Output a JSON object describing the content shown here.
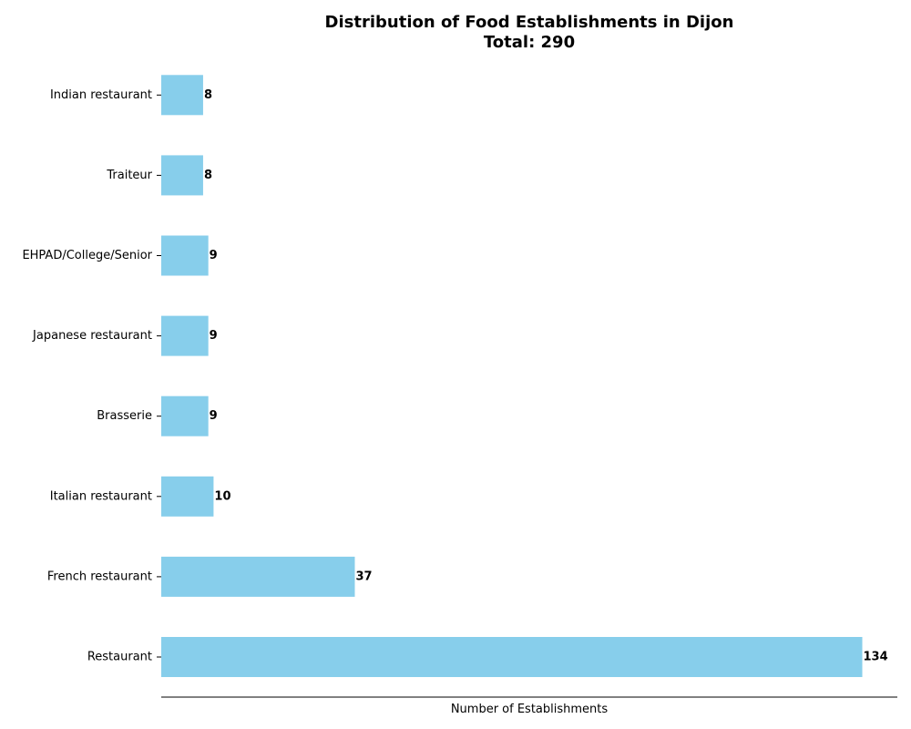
{
  "chart_data": {
    "type": "bar",
    "orientation": "horizontal",
    "title_lines": [
      "Distribution of Food Establishments in Dijon",
      "Total: 290"
    ],
    "xlabel": "Number of Establishments",
    "ylabel": "",
    "categories": [
      "Restaurant",
      "French restaurant",
      "Italian restaurant",
      "Brasserie",
      "Japanese restaurant",
      "EHPAD/College/Senior",
      "Traiteur",
      "Indian restaurant"
    ],
    "values": [
      134,
      37,
      10,
      9,
      9,
      9,
      8,
      8
    ],
    "xlim": [
      0,
      140.7
    ],
    "bar_color": "#87CEEB",
    "grid": false,
    "legend": "none",
    "x_tick_labels_shown": false
  }
}
